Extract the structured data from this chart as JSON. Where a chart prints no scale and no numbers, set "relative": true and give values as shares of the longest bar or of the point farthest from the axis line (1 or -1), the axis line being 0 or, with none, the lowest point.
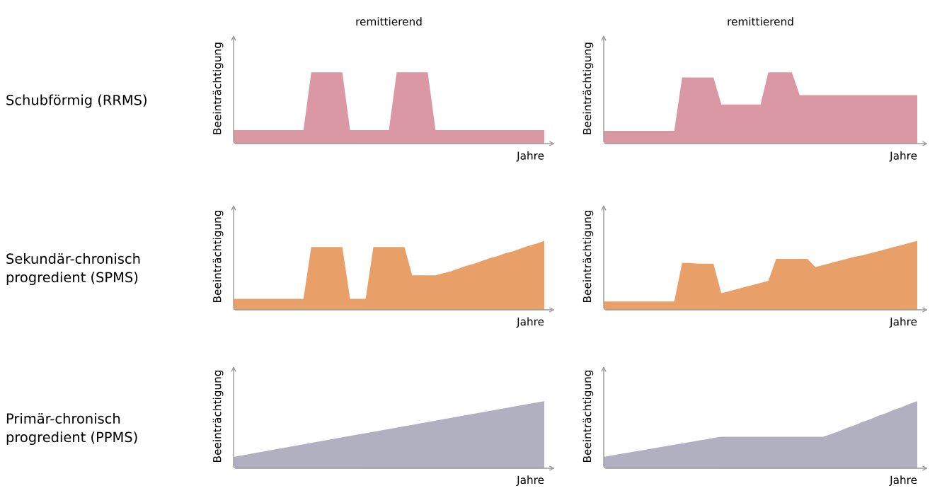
{
  "chart_data": [
    {
      "type": "area",
      "relative": true,
      "title": "remittierend",
      "annotations": [
        "Schubförmig (RRMS)"
      ],
      "xlabel": "Jahre",
      "ylabel": "Beeinträchtigung",
      "color": "#d998a4",
      "categories": [
        null,
        null,
        null,
        null,
        null,
        null,
        null,
        null,
        null,
        null,
        null,
        null,
        null,
        null,
        null,
        null,
        null,
        null,
        null,
        null,
        null,
        null,
        null,
        null,
        null,
        null,
        null,
        null,
        null,
        null,
        null,
        null,
        null,
        null,
        null,
        null,
        null,
        null,
        null,
        null,
        null
      ],
      "values": [
        0.19,
        0.19,
        0.19,
        0.19,
        0.19,
        0.19,
        0.19,
        0.19,
        0.19,
        0.19,
        1,
        1,
        1,
        1,
        1,
        0.19,
        0.19,
        0.19,
        0.19,
        0.19,
        0.19,
        1,
        1,
        1,
        1,
        1,
        0.19,
        0.19,
        0.19,
        0.19,
        0.19,
        0.19,
        0.19,
        0.19,
        0.19,
        0.19,
        0.19,
        0.19,
        0.19,
        0.19,
        0.19
      ]
    },
    {
      "type": "area",
      "relative": true,
      "title": "remittierend",
      "xlabel": "Jahre",
      "ylabel": "Beeinträchtigung",
      "color": "#d998a4",
      "categories": [
        null,
        null,
        null,
        null,
        null,
        null,
        null,
        null,
        null,
        null,
        null,
        null,
        null,
        null,
        null,
        null,
        null,
        null,
        null,
        null,
        null,
        null,
        null,
        null,
        null,
        null,
        null,
        null,
        null,
        null,
        null,
        null,
        null,
        null,
        null,
        null,
        null,
        null,
        null,
        null,
        null
      ],
      "values": [
        0.18,
        0.18,
        0.18,
        0.18,
        0.18,
        0.18,
        0.18,
        0.18,
        0.18,
        0.18,
        0.93,
        0.93,
        0.93,
        0.93,
        0.93,
        0.55,
        0.55,
        0.55,
        0.55,
        0.55,
        0.55,
        1,
        1,
        1,
        1,
        0.68,
        0.68,
        0.68,
        0.68,
        0.68,
        0.68,
        0.68,
        0.68,
        0.68,
        0.68,
        0.68,
        0.68,
        0.68,
        0.68,
        0.68,
        0.68
      ]
    },
    {
      "type": "area",
      "relative": true,
      "annotations": [
        "Sekundär-chronisch\nprogredient (SPMS)"
      ],
      "xlabel": "Jahre",
      "ylabel": "Beeinträchtigung",
      "color": "#e8a068",
      "categories": [
        null,
        null,
        null,
        null,
        null,
        null,
        null,
        null,
        null,
        null,
        null,
        null,
        null,
        null,
        null,
        null,
        null,
        null,
        null,
        null,
        null,
        null,
        null,
        null,
        null,
        null,
        null,
        null,
        null,
        null,
        null,
        null,
        null,
        null,
        null,
        null,
        null,
        null,
        null,
        null,
        null
      ],
      "values": [
        0.16,
        0.16,
        0.16,
        0.16,
        0.16,
        0.16,
        0.16,
        0.16,
        0.16,
        0.16,
        0.91,
        0.91,
        0.91,
        0.91,
        0.91,
        0.16,
        0.16,
        0.16,
        0.91,
        0.91,
        0.91,
        0.91,
        0.91,
        0.5,
        0.5,
        0.5,
        0.5,
        0.53,
        0.56,
        0.6,
        0.64,
        0.67,
        0.71,
        0.75,
        0.78,
        0.82,
        0.85,
        0.89,
        0.93,
        0.96,
        1
      ]
    },
    {
      "type": "area",
      "relative": true,
      "xlabel": "Jahre",
      "ylabel": "Beeinträchtigung",
      "color": "#e8a068",
      "categories": [
        null,
        null,
        null,
        null,
        null,
        null,
        null,
        null,
        null,
        null,
        null,
        null,
        null,
        null,
        null,
        null,
        null,
        null,
        null,
        null,
        null,
        null,
        null,
        null,
        null,
        null,
        null,
        null,
        null,
        null,
        null,
        null,
        null,
        null,
        null,
        null,
        null,
        null,
        null,
        null,
        null
      ],
      "values": [
        0.12,
        0.12,
        0.12,
        0.12,
        0.12,
        0.12,
        0.12,
        0.12,
        0.12,
        0.12,
        0.68,
        0.68,
        0.67,
        0.67,
        0.67,
        0.24,
        0.27,
        0.3,
        0.33,
        0.36,
        0.39,
        0.42,
        0.74,
        0.74,
        0.74,
        0.74,
        0.74,
        0.62,
        0.65,
        0.68,
        0.71,
        0.74,
        0.77,
        0.79,
        0.82,
        0.85,
        0.88,
        0.91,
        0.94,
        0.97,
        1
      ]
    },
    {
      "type": "area",
      "relative": true,
      "annotations": [
        "Primär-chronisch\nprogredient (PPMS)"
      ],
      "xlabel": "Jahre",
      "ylabel": "Beeinträchtigung",
      "color": "#b1b0c0",
      "categories": [
        null,
        null
      ],
      "values": [
        0.17,
        1
      ]
    },
    {
      "type": "area",
      "relative": true,
      "xlabel": "Jahre",
      "ylabel": "Beeinträchtigung",
      "color": "#b1b0c0",
      "categories": [
        null,
        null,
        null,
        null,
        null,
        null,
        null,
        null,
        null,
        null,
        null,
        null,
        null,
        null,
        null,
        null,
        null,
        null,
        null,
        null,
        null,
        null,
        null,
        null,
        null,
        null,
        null,
        null,
        null,
        null,
        null,
        null,
        null,
        null,
        null,
        null,
        null,
        null,
        null,
        null,
        null
      ],
      "values": [
        0.17,
        0.19,
        0.21,
        0.23,
        0.25,
        0.27,
        0.29,
        0.31,
        0.33,
        0.35,
        0.37,
        0.39,
        0.41,
        0.43,
        0.45,
        0.47,
        0.47,
        0.47,
        0.47,
        0.47,
        0.47,
        0.47,
        0.47,
        0.47,
        0.47,
        0.47,
        0.47,
        0.47,
        0.47,
        0.51,
        0.55,
        0.6,
        0.64,
        0.69,
        0.73,
        0.78,
        0.82,
        0.87,
        0.91,
        0.96,
        1
      ]
    }
  ]
}
